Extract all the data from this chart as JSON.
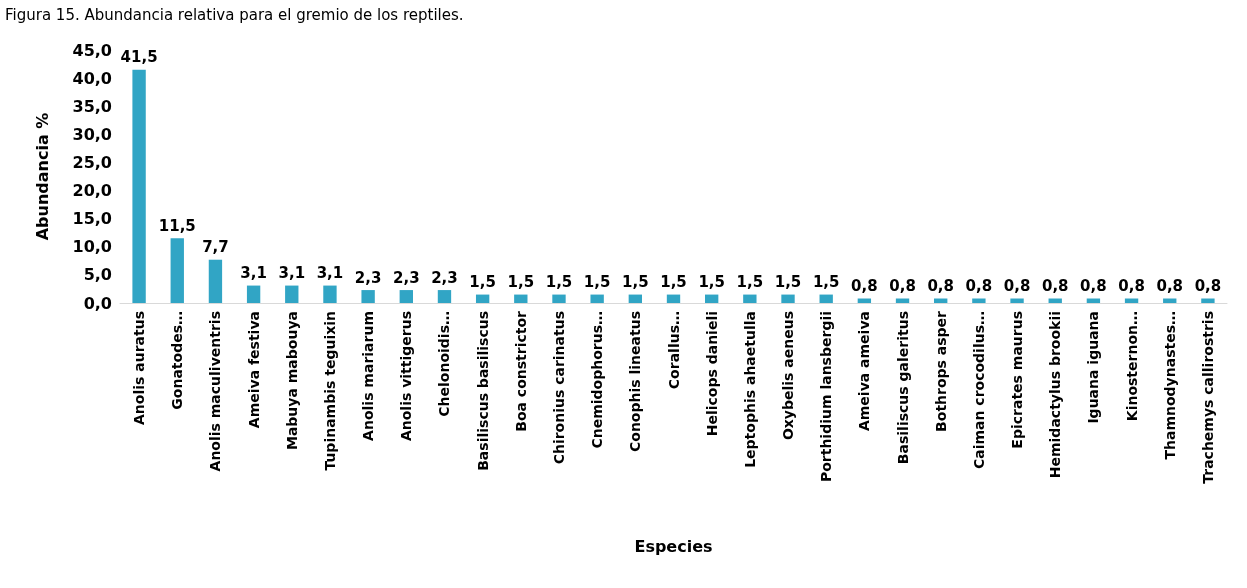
{
  "chart_data": {
    "type": "bar",
    "title": "Figura 15. Abundancia relativa para el gremio de los reptiles.",
    "xlabel": "Especies",
    "ylabel": "Abundancia %",
    "categories": [
      "Anolis auratus",
      "Gonatodes…",
      "Anolis maculiventris",
      "Ameiva festiva",
      "Mabuya mabouya",
      "Tupinambis teguixin",
      "Anolis mariarum",
      "Anolis vittigerus",
      "Chelonoidis…",
      "Basiliscus basiliscus",
      "Boa constrictor",
      "Chironius carinatus",
      "Cnemidophorus…",
      "Conophis lineatus",
      "Corallus…",
      "Helicops danieli",
      "Leptophis ahaetulla",
      "Oxybelis aeneus",
      "Porthidium lansbergii",
      "Ameiva ameiva",
      "Basiliscus galeritus",
      "Bothrops asper",
      "Caiman crocodilus…",
      "Epicrates maurus",
      "Hemidactylus brookii",
      "Iguana iguana",
      "Kinosternon…",
      "Thamnodynastes…",
      "Trachemys callirostris"
    ],
    "values": [
      41.5,
      11.5,
      7.7,
      3.1,
      3.1,
      3.1,
      2.3,
      2.3,
      2.3,
      1.5,
      1.5,
      1.5,
      1.5,
      1.5,
      1.5,
      1.5,
      1.5,
      1.5,
      1.5,
      0.8,
      0.8,
      0.8,
      0.8,
      0.8,
      0.8,
      0.8,
      0.8,
      0.8,
      0.8
    ],
    "value_labels": [
      "41,5",
      "11,5",
      "7,7",
      "3,1",
      "3,1",
      "3,1",
      "2,3",
      "2,3",
      "2,3",
      "1,5",
      "1,5",
      "1,5",
      "1,5",
      "1,5",
      "1,5",
      "1,5",
      "1,5",
      "1,5",
      "1,5",
      "0,8",
      "0,8",
      "0,8",
      "0,8",
      "0,8",
      "0,8",
      "0,8",
      "0,8",
      "0,8",
      "0,8"
    ],
    "color": "#31a5c5",
    "ylim": [
      0,
      45
    ],
    "yticks": [
      {
        "value": 0,
        "label": "0,0"
      },
      {
        "value": 5,
        "label": "5,0"
      },
      {
        "value": 10,
        "label": "10,0"
      },
      {
        "value": 15,
        "label": "15,0"
      },
      {
        "value": 20,
        "label": "20,0"
      },
      {
        "value": 25,
        "label": "25,0"
      },
      {
        "value": 30,
        "label": "30,0"
      },
      {
        "value": 35,
        "label": "35,0"
      },
      {
        "value": 40,
        "label": "40,0"
      },
      {
        "value": 45,
        "label": "45,0"
      }
    ],
    "grid": false
  }
}
